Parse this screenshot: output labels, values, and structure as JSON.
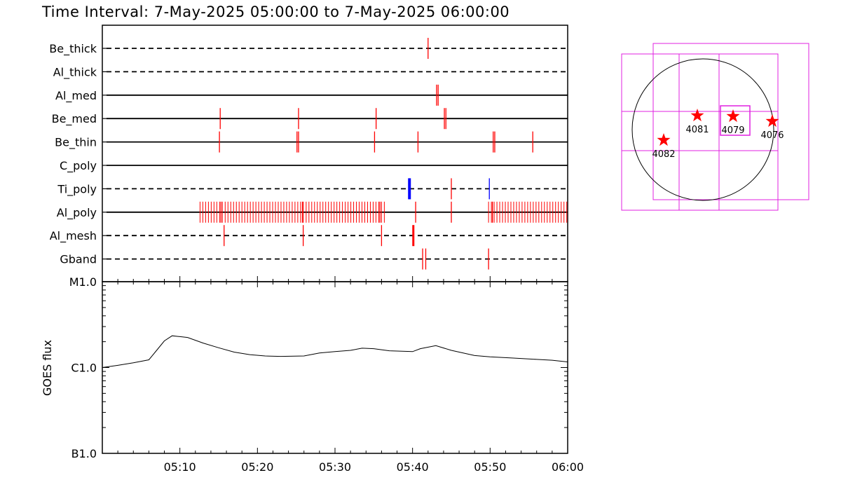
{
  "title": "Time Interval:  7-May-2025 05:00:00 to  7-May-2025 06:00:00",
  "colors": {
    "exposure_red": "#ff0000",
    "exposure_blue": "#0000ff",
    "fov_magenta": "#e020e0",
    "axis": "#000000"
  },
  "exposures": {
    "x_range_minutes": [
      0,
      60
    ],
    "x_tick_labels": [
      "05:10",
      "05:20",
      "05:30",
      "05:40",
      "05:50",
      "06:00"
    ],
    "x_tick_values": [
      10,
      20,
      30,
      40,
      50,
      60
    ],
    "filters": [
      {
        "name": "Be_thick",
        "line": "dashed",
        "ticks": [
          {
            "t": 42.0,
            "c": "red"
          }
        ]
      },
      {
        "name": "Al_thick",
        "line": "dashed",
        "ticks": []
      },
      {
        "name": "Al_med",
        "line": "solid",
        "ticks": [
          {
            "t": 43.1,
            "c": "red"
          },
          {
            "t": 43.3,
            "c": "red"
          }
        ]
      },
      {
        "name": "Be_med",
        "line": "solid",
        "ticks": [
          {
            "t": 15.2,
            "c": "red"
          },
          {
            "t": 25.3,
            "c": "red"
          },
          {
            "t": 35.3,
            "c": "red"
          },
          {
            "t": 44.1,
            "c": "red"
          },
          {
            "t": 44.3,
            "c": "red"
          }
        ]
      },
      {
        "name": "Be_thin",
        "line": "solid",
        "ticks": [
          {
            "t": 15.1,
            "c": "red"
          },
          {
            "t": 25.1,
            "c": "red"
          },
          {
            "t": 25.3,
            "c": "red"
          },
          {
            "t": 35.1,
            "c": "red"
          },
          {
            "t": 40.7,
            "c": "red"
          },
          {
            "t": 50.4,
            "c": "red"
          },
          {
            "t": 50.6,
            "c": "red"
          },
          {
            "t": 55.5,
            "c": "red"
          }
        ]
      },
      {
        "name": "C_poly",
        "line": "solid",
        "ticks": []
      },
      {
        "name": "Ti_poly",
        "line": "dashed",
        "ticks": [
          {
            "t": 39.6,
            "c": "blue",
            "w": 4
          },
          {
            "t": 45.0,
            "c": "red"
          },
          {
            "t": 49.9,
            "c": "blue"
          }
        ]
      },
      {
        "name": "Al_poly",
        "line": "solid",
        "ticks": [
          {
            "t": 15.3,
            "c": "red"
          },
          {
            "t": 25.8,
            "c": "red"
          },
          {
            "t": 35.8,
            "c": "red"
          },
          {
            "t": 40.4,
            "c": "red"
          },
          {
            "t": 45.0,
            "c": "red"
          },
          {
            "t": 50.3,
            "c": "red"
          }
        ],
        "dense_runs": [
          [
            12.6,
            36.4
          ],
          [
            49.8,
            60.0
          ]
        ]
      },
      {
        "name": "Al_mesh",
        "line": "dashed",
        "ticks": [
          {
            "t": 15.7,
            "c": "red"
          },
          {
            "t": 25.9,
            "c": "red"
          },
          {
            "t": 36.0,
            "c": "red"
          },
          {
            "t": 40.1,
            "c": "red",
            "w": 3
          }
        ]
      },
      {
        "name": "Gband",
        "line": "dashed",
        "ticks": [
          {
            "t": 41.3,
            "c": "red"
          },
          {
            "t": 41.7,
            "c": "red"
          },
          {
            "t": 49.8,
            "c": "red"
          }
        ]
      }
    ]
  },
  "chart_data": {
    "type": "line",
    "title": "Time Interval:  7-May-2025 05:00:00 to  7-May-2025 06:00:00",
    "xlabel": "",
    "ylabel": "GOES flux",
    "xlim_minutes": [
      0,
      60
    ],
    "x_tick_labels": [
      "05:10",
      "05:20",
      "05:30",
      "05:40",
      "05:50",
      "06:00"
    ],
    "y_scale": "log",
    "y_tick_labels": [
      "M1.0",
      "C1.0",
      "B1.0"
    ],
    "ylim_log10": [
      -7,
      -5
    ],
    "series": [
      {
        "x_minutes": [
          0,
          2,
          4,
          6,
          7,
          8,
          9,
          10,
          11,
          13,
          15,
          17,
          19,
          21,
          23,
          26,
          28,
          30,
          32,
          33.5,
          35,
          37,
          40,
          41,
          43,
          45,
          48,
          50,
          53,
          56,
          58,
          60
        ],
        "log10_flux": [
          -6.0,
          -5.975,
          -5.945,
          -5.91,
          -5.8,
          -5.69,
          -5.63,
          -5.64,
          -5.65,
          -5.715,
          -5.77,
          -5.82,
          -5.85,
          -5.865,
          -5.87,
          -5.865,
          -5.83,
          -5.815,
          -5.8,
          -5.775,
          -5.78,
          -5.805,
          -5.815,
          -5.78,
          -5.745,
          -5.8,
          -5.86,
          -5.875,
          -5.89,
          -5.905,
          -5.915,
          -5.935
        ]
      }
    ]
  },
  "sun_map": {
    "regions": [
      {
        "label": "4082",
        "x": 947,
        "y": 200
      },
      {
        "label": "4081",
        "x": 995,
        "y": 165
      },
      {
        "label": "4079",
        "x": 1046,
        "y": 166
      },
      {
        "label": "4076",
        "x": 1102,
        "y": 173
      }
    ]
  }
}
